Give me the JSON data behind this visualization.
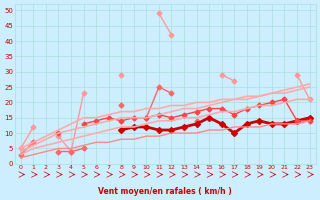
{
  "bg_color": "#cceeff",
  "grid_color": "#aadddd",
  "xlabel": "Vent moyen/en rafales ( km/h )",
  "xlabel_color": "#cc0000",
  "x_ticks": [
    0,
    1,
    2,
    3,
    4,
    5,
    6,
    7,
    8,
    9,
    10,
    11,
    12,
    13,
    14,
    15,
    16,
    17,
    18,
    19,
    20,
    21,
    22,
    23
  ],
  "ylim": [
    0,
    52
  ],
  "yticks": [
    0,
    5,
    10,
    15,
    20,
    25,
    30,
    35,
    40,
    45,
    50
  ],
  "lines": [
    {
      "color": "#ff9999",
      "lw": 1.0,
      "marker": "D",
      "ms": 2.5,
      "y": [
        5,
        12,
        null,
        9,
        4,
        23,
        null,
        null,
        29,
        null,
        null,
        49,
        42,
        null,
        null,
        null,
        29,
        27,
        null,
        null,
        null,
        null,
        29,
        21
      ]
    },
    {
      "color": "#ff6666",
      "lw": 1.0,
      "marker": "D",
      "ms": 2.5,
      "y": [
        3,
        7,
        null,
        4,
        4,
        5,
        null,
        null,
        19,
        null,
        15,
        25,
        23,
        null,
        14,
        null,
        null,
        null,
        null,
        null,
        null,
        null,
        null,
        null
      ]
    },
    {
      "color": "#cc0000",
      "lw": 2.0,
      "marker": "D",
      "ms": 3.0,
      "y": [
        null,
        null,
        null,
        null,
        null,
        null,
        null,
        null,
        11,
        12,
        12,
        11,
        11,
        12,
        13,
        15,
        13,
        10,
        13,
        14,
        13,
        13,
        14,
        15
      ]
    },
    {
      "color": "#ff4444",
      "lw": 1.0,
      "marker": "D",
      "ms": 2.5,
      "y": [
        null,
        null,
        null,
        10,
        null,
        13,
        14,
        15,
        14,
        15,
        15,
        16,
        15,
        16,
        17,
        18,
        18,
        16,
        18,
        19,
        20,
        21,
        14,
        14
      ]
    },
    {
      "color": "#ffaaaa",
      "lw": 1.2,
      "marker": "",
      "ms": 0,
      "y": [
        5,
        7,
        9,
        11,
        13,
        15,
        15,
        16,
        17,
        17,
        18,
        18,
        19,
        19,
        20,
        20,
        21,
        21,
        22,
        22,
        23,
        24,
        25,
        26
      ]
    },
    {
      "color": "#ffaaaa",
      "lw": 1.2,
      "marker": "",
      "ms": 0,
      "y": [
        4,
        6,
        8,
        10,
        11,
        12,
        13,
        14,
        15,
        15,
        15,
        16,
        17,
        18,
        18,
        19,
        20,
        21,
        21,
        22,
        23,
        23,
        24,
        25
      ]
    },
    {
      "color": "#ffaaaa",
      "lw": 1.2,
      "marker": "",
      "ms": 0,
      "y": [
        3,
        5,
        6,
        7,
        8,
        9,
        10,
        11,
        12,
        12,
        13,
        14,
        14,
        15,
        15,
        16,
        17,
        17,
        18,
        19,
        19,
        20,
        21,
        21
      ]
    },
    {
      "color": "#ff8888",
      "lw": 1.0,
      "marker": "",
      "ms": 0,
      "y": [
        2,
        3,
        4,
        5,
        5,
        6,
        7,
        7,
        8,
        8,
        9,
        9,
        10,
        10,
        10,
        11,
        11,
        12,
        12,
        12,
        13,
        13,
        13,
        14
      ]
    }
  ]
}
